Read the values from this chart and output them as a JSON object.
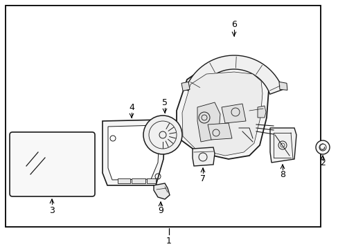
{
  "bg_color": "#ffffff",
  "border_color": "#000000",
  "line_color": "#1a1a1a",
  "fig_width": 4.89,
  "fig_height": 3.6,
  "dpi": 100,
  "label_fontsize": 9
}
